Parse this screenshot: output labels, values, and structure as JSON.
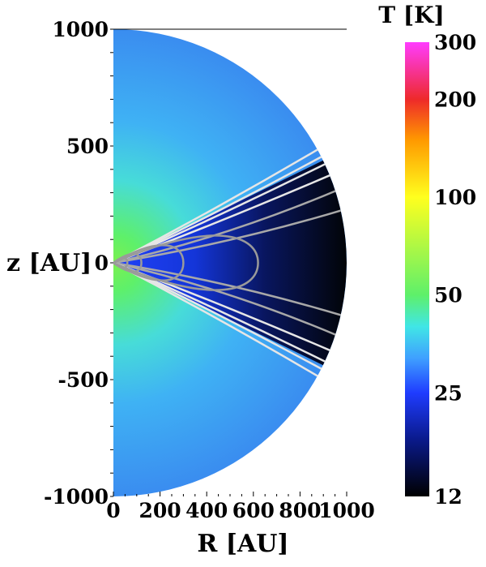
{
  "chart_data": {
    "type": "heatmap",
    "geometry": "half-disk",
    "title": "",
    "xlabel": "R [AU]",
    "ylabel": "z [AU]",
    "xlim": [
      0,
      1000
    ],
    "ylim": [
      -1000,
      1000
    ],
    "x_ticks": [
      0,
      200,
      400,
      600,
      800,
      1000
    ],
    "y_ticks": [
      1000,
      500,
      0,
      -500,
      -1000
    ],
    "x_tick_labels": [
      "0",
      "200",
      "400",
      "600",
      "800",
      "1000"
    ],
    "y_tick_labels": [
      "1000",
      "500",
      "0",
      "-500",
      "-1000"
    ],
    "colorbar": {
      "title": "T [K]",
      "scale": "log",
      "range": [
        12,
        300
      ],
      "ticks": [
        300,
        200,
        100,
        50,
        25,
        12
      ],
      "tick_labels": [
        "300",
        "200",
        "100",
        "50",
        "25",
        "12"
      ],
      "colors": [
        {
          "T": 12,
          "color": "#000000"
        },
        {
          "T": 18,
          "color": "#0a1a8c"
        },
        {
          "T": 25,
          "color": "#1f3cff"
        },
        {
          "T": 32,
          "color": "#3fa0ff"
        },
        {
          "T": 40,
          "color": "#40e6e6"
        },
        {
          "T": 50,
          "color": "#5ef06a"
        },
        {
          "T": 100,
          "color": "#ffff1e"
        },
        {
          "T": 150,
          "color": "#ff9900"
        },
        {
          "T": 200,
          "color": "#ee2a2a"
        },
        {
          "T": 300,
          "color": "#ff3cff"
        }
      ]
    },
    "temperature_field": {
      "description_values": [
        {
          "region": "envelope near axis",
          "T": 45
        },
        {
          "region": "outer envelope",
          "T": 30
        },
        {
          "region": "disk midplane outer",
          "T": 12
        },
        {
          "region": "disk surface",
          "T": 22
        },
        {
          "region": "inner axis",
          "T": 60
        }
      ]
    },
    "density_contours_outer_R": [
      1000,
      980,
      950,
      900,
      820,
      620,
      300,
      120,
      60
    ]
  }
}
